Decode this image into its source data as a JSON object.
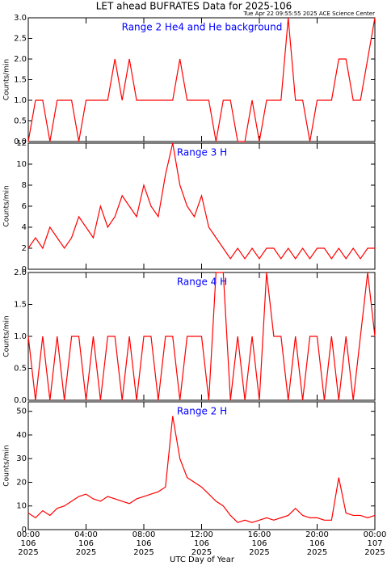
{
  "title": "LET ahead BUFRATES Data for 2025-106",
  "subtitle": "Tue Apr 22 09:55:55 2025 ACE Science Center",
  "chart_data": [
    {
      "type": "line",
      "annotation": "Range 2 He4 and He background",
      "ylabel": "Counts/min",
      "color": "#ff0000",
      "x": [
        0,
        0.5,
        1,
        1.5,
        2,
        2.5,
        3,
        3.5,
        4,
        4.5,
        5,
        5.5,
        6,
        6.5,
        7,
        7.5,
        8,
        8.5,
        9,
        9.5,
        10,
        10.5,
        11,
        11.5,
        12,
        12.5,
        13,
        13.5,
        14,
        14.5,
        15,
        15.5,
        16,
        16.5,
        17,
        17.5,
        18,
        18.5,
        19,
        19.5,
        20,
        20.5,
        21,
        21.5,
        22,
        22.5,
        23,
        23.5,
        24
      ],
      "values": [
        0,
        1,
        1,
        0,
        1,
        1,
        1,
        0,
        1,
        1,
        1,
        1,
        2,
        1,
        2,
        1,
        1,
        1,
        1,
        1,
        1,
        2,
        1,
        1,
        1,
        1,
        0,
        1,
        1,
        0,
        0,
        1,
        0,
        1,
        1,
        1,
        3,
        1,
        1,
        0,
        1,
        1,
        1,
        2,
        2,
        1,
        1,
        2,
        3
      ],
      "xlim": [
        0,
        24
      ],
      "xticks": [
        0,
        4,
        8,
        12,
        16,
        20,
        24
      ],
      "ylim": [
        0,
        3
      ],
      "yticks": [
        {
          "value": 0,
          "label": "0.0"
        },
        0.5,
        {
          "value": 1,
          "label": "1.0"
        },
        1.5,
        {
          "value": 2,
          "label": "2.0"
        },
        2.5,
        {
          "value": 3,
          "label": "3.0"
        }
      ]
    },
    {
      "type": "line",
      "annotation": "Range 3 H",
      "ylabel": "Counts/min",
      "color": "#ff0000",
      "x": [
        0,
        0.5,
        1,
        1.5,
        2,
        2.5,
        3,
        3.5,
        4,
        4.5,
        5,
        5.5,
        6,
        6.5,
        7,
        7.5,
        8,
        8.5,
        9,
        9.5,
        10,
        10.5,
        11,
        11.5,
        12,
        12.5,
        13,
        13.5,
        14,
        14.5,
        15,
        15.5,
        16,
        16.5,
        17,
        17.5,
        18,
        18.5,
        19,
        19.5,
        20,
        20.5,
        21,
        21.5,
        22,
        22.5,
        23,
        23.5,
        24
      ],
      "values": [
        2,
        3,
        2,
        4,
        3,
        2,
        3,
        5,
        4,
        3,
        6,
        4,
        5,
        7,
        6,
        5,
        8,
        6,
        5,
        9,
        12,
        8,
        6,
        5,
        7,
        4,
        3,
        2,
        1,
        2,
        1,
        2,
        1,
        2,
        2,
        1,
        2,
        1,
        2,
        1,
        2,
        2,
        1,
        2,
        1,
        2,
        1,
        2,
        2
      ],
      "xlim": [
        0,
        24
      ],
      "xticks": [
        0,
        4,
        8,
        12,
        16,
        20,
        24
      ],
      "ylim": [
        0,
        12
      ],
      "yticks": [
        0,
        2,
        4,
        6,
        8,
        10,
        12
      ]
    },
    {
      "type": "line",
      "annotation": "Range 4 H",
      "ylabel": "Counts/min",
      "color": "#ff0000",
      "x": [
        0,
        0.5,
        1,
        1.5,
        2,
        2.5,
        3,
        3.5,
        4,
        4.5,
        5,
        5.5,
        6,
        6.5,
        7,
        7.5,
        8,
        8.5,
        9,
        9.5,
        10,
        10.5,
        11,
        11.5,
        12,
        12.5,
        13,
        13.5,
        14,
        14.5,
        15,
        15.5,
        16,
        16.5,
        17,
        17.5,
        18,
        18.5,
        19,
        19.5,
        20,
        20.5,
        21,
        21.5,
        22,
        22.5,
        23,
        23.5,
        24
      ],
      "values": [
        1,
        0,
        1,
        0,
        1,
        0,
        1,
        1,
        0,
        1,
        0,
        1,
        1,
        0,
        1,
        0,
        1,
        1,
        0,
        1,
        1,
        0,
        1,
        1,
        1,
        0,
        2,
        2,
        0,
        1,
        0,
        1,
        0,
        2,
        1,
        1,
        0,
        1,
        0,
        1,
        1,
        0,
        1,
        0,
        1,
        0,
        1,
        2,
        1
      ],
      "xlim": [
        0,
        24
      ],
      "xticks": [
        0,
        4,
        8,
        12,
        16,
        20,
        24
      ],
      "ylim": [
        0,
        2
      ],
      "yticks": [
        {
          "value": 0,
          "label": "0.0"
        },
        0.5,
        {
          "value": 1,
          "label": "1.0"
        },
        1.5,
        {
          "value": 2,
          "label": "2.0"
        }
      ]
    },
    {
      "type": "line",
      "annotation": "Range 2 H",
      "ylabel": "Counts/min",
      "xlabel": "UTC Day of Year",
      "color": "#ff0000",
      "x": [
        0,
        0.5,
        1,
        1.5,
        2,
        2.5,
        3,
        3.5,
        4,
        4.5,
        5,
        5.5,
        6,
        6.5,
        7,
        7.5,
        8,
        8.5,
        9,
        9.5,
        10,
        10.5,
        11,
        11.5,
        12,
        12.5,
        13,
        13.5,
        14,
        14.5,
        15,
        15.5,
        16,
        16.5,
        17,
        17.5,
        18,
        18.5,
        19,
        19.5,
        20,
        20.5,
        21,
        21.5,
        22,
        22.5,
        23,
        23.5,
        24
      ],
      "values": [
        7,
        5,
        8,
        6,
        9,
        10,
        12,
        14,
        15,
        13,
        12,
        14,
        13,
        12,
        11,
        13,
        14,
        15,
        16,
        18,
        48,
        30,
        22,
        20,
        18,
        15,
        12,
        10,
        6,
        3,
        4,
        3,
        4,
        5,
        4,
        5,
        6,
        9,
        6,
        5,
        5,
        4,
        4,
        22,
        7,
        6,
        6,
        5,
        6
      ],
      "xlim": [
        0,
        24
      ],
      "xticks": [
        {
          "value": 0,
          "label": [
            "00:00",
            "106",
            "2025"
          ]
        },
        {
          "value": 4,
          "label": [
            "04:00",
            "106",
            "2025"
          ]
        },
        {
          "value": 8,
          "label": [
            "08:00",
            "106",
            "2025"
          ]
        },
        {
          "value": 12,
          "label": [
            "12:00",
            "106",
            "2025"
          ]
        },
        {
          "value": 16,
          "label": [
            "16:00",
            "106",
            "2025"
          ]
        },
        {
          "value": 20,
          "label": [
            "20:00",
            "106",
            "2025"
          ]
        },
        {
          "value": 24,
          "label": [
            "00:00",
            "107",
            "2025"
          ]
        }
      ],
      "ylim": [
        0,
        54
      ],
      "yticks": [
        0,
        10,
        20,
        30,
        40,
        50
      ]
    }
  ]
}
